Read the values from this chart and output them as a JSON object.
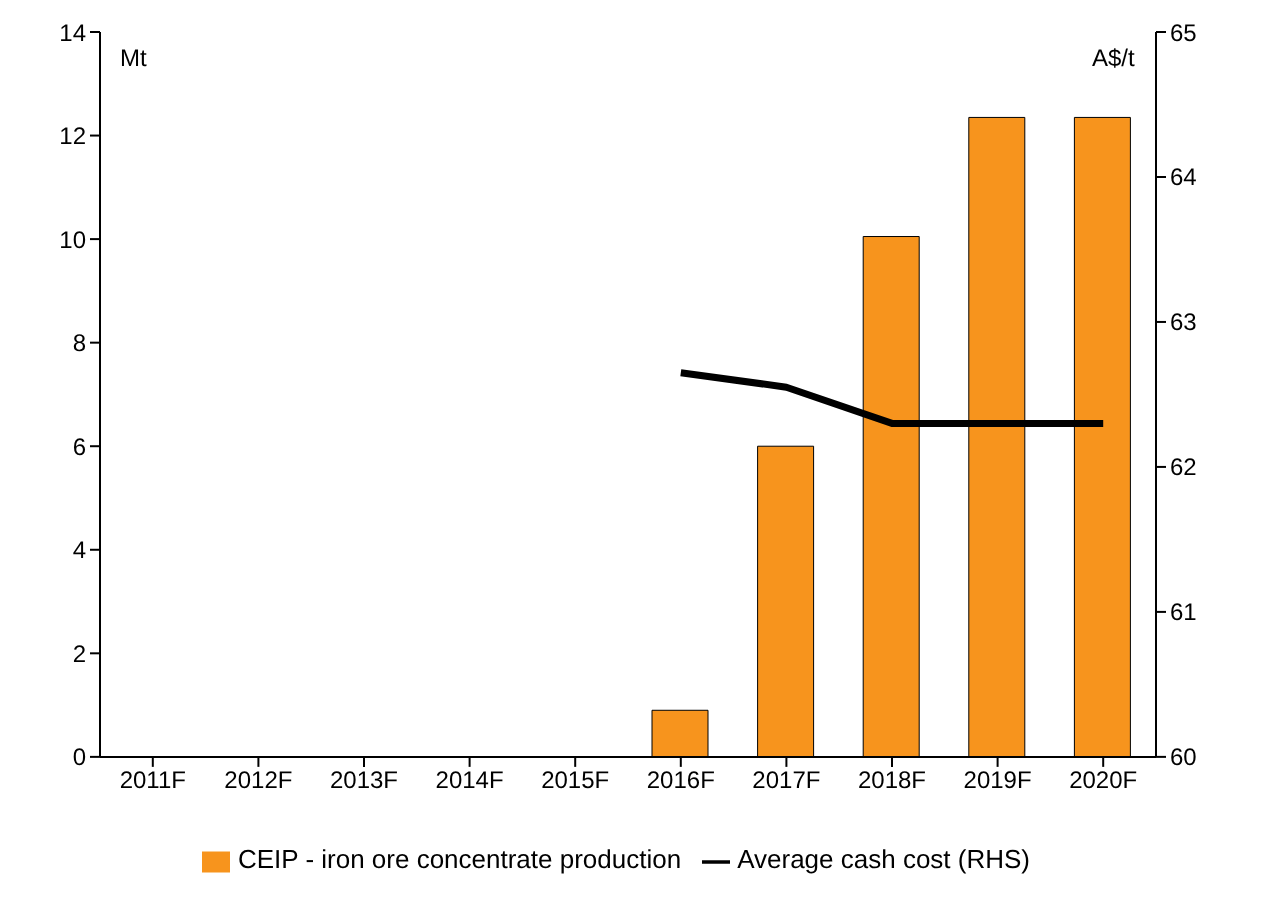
{
  "chart_data": {
    "type": "bar",
    "categories": [
      "2011F",
      "2012F",
      "2013F",
      "2014F",
      "2015F",
      "2016F",
      "2017F",
      "2018F",
      "2019F",
      "2020F"
    ],
    "ylabel": "Mt",
    "y2label": "A$/t",
    "series": [
      {
        "name": "CEIP - iron ore concentrate production",
        "color": "#f7941d",
        "values": [
          null,
          null,
          null,
          null,
          null,
          0.9,
          6.0,
          10.05,
          12.35,
          12.35
        ]
      },
      {
        "name": "Average cash cost (RHS)",
        "type": "line",
        "axis": "y2",
        "color": "#000000",
        "values": [
          null,
          null,
          null,
          null,
          null,
          62.65,
          62.55,
          62.3,
          62.3,
          62.3
        ]
      }
    ],
    "ylim": [
      0,
      14
    ],
    "yticks": [
      0,
      2,
      4,
      6,
      8,
      10,
      12,
      14
    ],
    "y2lim": [
      60,
      65
    ],
    "y2ticks": [
      60,
      61,
      62,
      63,
      64,
      65
    ],
    "legend": "bottom",
    "marker": "none",
    "line_style": "solid"
  }
}
